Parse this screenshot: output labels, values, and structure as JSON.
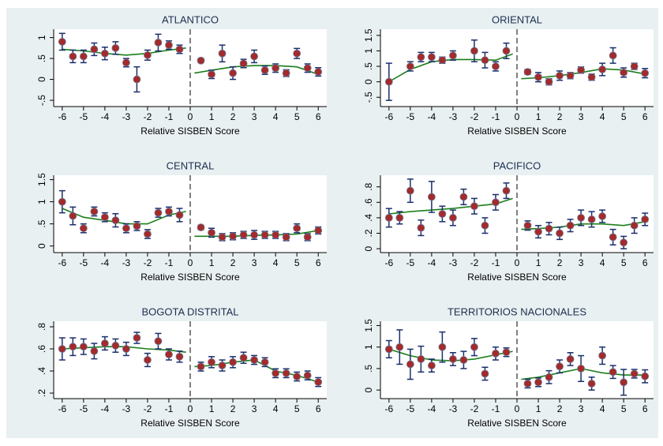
{
  "chart_data": [
    {
      "type": "errorbar",
      "title": "ATLANTICO",
      "x_label": "Relative SISBEN Score",
      "x": [
        -6,
        -5.5,
        -5,
        -4.5,
        -4,
        -3.5,
        -3,
        -2.5,
        -2,
        -1.5,
        -1,
        -0.5,
        0.5,
        1,
        1.5,
        2,
        2.5,
        3,
        3.5,
        4,
        4.5,
        5,
        5.5,
        6
      ],
      "values": [
        0.9,
        0.55,
        0.55,
        0.72,
        0.62,
        0.75,
        0.4,
        0.0,
        0.58,
        0.88,
        0.82,
        0.72,
        0.45,
        0.12,
        0.62,
        0.15,
        0.38,
        0.55,
        0.22,
        0.27,
        0.15,
        0.62,
        0.27,
        0.18
      ],
      "errors": [
        0.2,
        0.15,
        0.15,
        0.15,
        0.15,
        0.15,
        0.1,
        0.3,
        0.12,
        0.2,
        0.1,
        0.1,
        0.05,
        0.1,
        0.2,
        0.15,
        0.1,
        0.15,
        0.1,
        0.1,
        0.08,
        0.12,
        0.1,
        0.1
      ],
      "fit": {
        "x": [
          -6,
          -5,
          -4,
          -3,
          -2,
          -1,
          -0.2,
          0,
          0.2,
          1,
          2,
          3,
          4,
          5,
          6
        ],
        "values": [
          0.72,
          0.68,
          0.62,
          0.58,
          0.62,
          0.7,
          0.75,
          null,
          0.15,
          0.22,
          0.3,
          0.33,
          0.33,
          0.3,
          0.12
        ]
      },
      "cutoff": 0,
      "xlim": [
        -6.4,
        6.4
      ],
      "xticks": [
        -6,
        -5,
        -4,
        -3,
        -2,
        -1,
        0,
        1,
        2,
        3,
        4,
        5,
        6
      ],
      "ylim": [
        -0.65,
        1.2
      ],
      "yticks": [
        {
          "value": -0.5,
          "label": "-.5"
        },
        0,
        {
          "value": 0.5,
          "label": ".5"
        },
        1
      ]
    },
    {
      "type": "errorbar",
      "title": "ORIENTAL",
      "x_label": "Relative SISBEN Score",
      "x": [
        -6,
        -5.5,
        -5,
        -4.5,
        -4,
        -3.5,
        -3,
        -2.5,
        -2,
        -1.5,
        -1,
        -0.5,
        0.5,
        1,
        1.5,
        2,
        2.5,
        3,
        3.5,
        4,
        4.5,
        5,
        5.5,
        6
      ],
      "values": [
        0.0,
        null,
        0.5,
        0.8,
        0.8,
        0.7,
        0.85,
        null,
        1.0,
        0.7,
        0.5,
        1.0,
        0.32,
        0.15,
        0.0,
        0.2,
        0.2,
        0.38,
        0.15,
        0.4,
        0.85,
        0.3,
        0.5,
        0.28
      ],
      "errors": [
        0.6,
        null,
        0.15,
        0.15,
        0.15,
        0.1,
        0.15,
        null,
        0.35,
        0.25,
        0.15,
        0.25,
        0.08,
        0.15,
        0.1,
        0.15,
        0.1,
        0.1,
        0.1,
        0.2,
        0.25,
        0.15,
        0.1,
        0.15
      ],
      "fit": {
        "x": [
          -6,
          -5,
          -4,
          -3,
          -2,
          -1,
          -0.2,
          0,
          0.2,
          1,
          2,
          3,
          4,
          5,
          6
        ],
        "values": [
          0.0,
          0.4,
          0.65,
          0.72,
          0.72,
          0.7,
          0.9,
          null,
          0.1,
          0.13,
          0.2,
          0.3,
          0.42,
          0.38,
          0.25
        ]
      },
      "cutoff": 0,
      "xlim": [
        -6.4,
        6.4
      ],
      "xticks": [
        -6,
        -5,
        -4,
        -3,
        -2,
        -1,
        0,
        1,
        2,
        3,
        4,
        5,
        6
      ],
      "ylim": [
        -0.8,
        1.7
      ],
      "yticks": [
        {
          "value": -0.5,
          "label": "-.5"
        },
        0,
        {
          "value": 0.5,
          "label": ".5"
        },
        1,
        1.5
      ]
    },
    {
      "type": "errorbar",
      "title": "CENTRAL",
      "x_label": "Relative SISBEN Score",
      "x": [
        -6,
        -5.5,
        -5,
        -4.5,
        -4,
        -3.5,
        -3,
        -2.5,
        -2,
        -1.5,
        -1,
        -0.5,
        0.5,
        1,
        1.5,
        2,
        2.5,
        3,
        3.5,
        4,
        4.5,
        5,
        5.5,
        6
      ],
      "values": [
        1.0,
        0.68,
        0.4,
        0.78,
        0.65,
        0.58,
        0.4,
        0.45,
        0.27,
        0.75,
        0.78,
        0.7,
        0.42,
        0.3,
        0.2,
        0.22,
        0.25,
        0.25,
        0.25,
        0.25,
        0.2,
        0.4,
        0.2,
        0.35
      ],
      "errors": [
        0.25,
        0.2,
        0.1,
        0.1,
        0.1,
        0.15,
        0.1,
        0.1,
        0.1,
        0.1,
        0.1,
        0.15,
        0.05,
        0.1,
        0.08,
        0.08,
        0.08,
        0.1,
        0.08,
        0.08,
        0.08,
        0.1,
        0.08,
        0.08
      ],
      "fit": {
        "x": [
          -6,
          -5,
          -4,
          -3,
          -2,
          -1,
          -0.2,
          0,
          0.2,
          1,
          2,
          3,
          4,
          5,
          6
        ],
        "values": [
          0.85,
          0.65,
          0.58,
          0.5,
          0.5,
          0.7,
          0.78,
          null,
          0.22,
          0.22,
          0.22,
          0.24,
          0.25,
          0.27,
          0.35
        ]
      },
      "cutoff": 0,
      "xlim": [
        -6.4,
        6.4
      ],
      "xticks": [
        -6,
        -5,
        -4,
        -3,
        -2,
        -1,
        0,
        1,
        2,
        3,
        4,
        5,
        6
      ],
      "ylim": [
        -0.15,
        1.6
      ],
      "yticks": [
        0,
        {
          "value": 0.5,
          "label": ".5"
        },
        1,
        1.5
      ]
    },
    {
      "type": "errorbar",
      "title": "PACIFICO",
      "x_label": "Relative SISBEN Score",
      "x": [
        -6,
        -5.5,
        -5,
        -4.5,
        -4,
        -3.5,
        -3,
        -2.5,
        -2,
        -1.5,
        -1,
        -0.5,
        0.5,
        1,
        1.5,
        2,
        2.5,
        3,
        3.5,
        4,
        4.5,
        5,
        5.5,
        6
      ],
      "values": [
        0.4,
        0.4,
        0.75,
        0.27,
        0.67,
        0.45,
        0.4,
        0.67,
        0.55,
        0.3,
        0.6,
        0.75,
        0.3,
        0.22,
        0.26,
        0.2,
        0.3,
        0.4,
        0.38,
        0.42,
        0.15,
        0.08,
        0.3,
        0.38
      ],
      "errors": [
        0.12,
        0.08,
        0.15,
        0.1,
        0.2,
        0.1,
        0.1,
        0.1,
        0.1,
        0.1,
        0.1,
        0.1,
        0.06,
        0.08,
        0.08,
        0.08,
        0.08,
        0.1,
        0.1,
        0.08,
        0.1,
        0.08,
        0.1,
        0.08
      ],
      "fit": {
        "x": [
          -6,
          -5,
          -4,
          -3,
          -2,
          -1,
          -0.2,
          0,
          0.2,
          1,
          2,
          3,
          4,
          5,
          6
        ],
        "values": [
          0.45,
          0.48,
          0.5,
          0.52,
          0.55,
          0.58,
          0.65,
          null,
          0.25,
          0.26,
          0.28,
          0.32,
          0.32,
          0.3,
          0.35
        ]
      },
      "cutoff": 0,
      "xlim": [
        -6.4,
        6.4
      ],
      "xticks": [
        -6,
        -5,
        -4,
        -3,
        -2,
        -1,
        0,
        1,
        2,
        3,
        4,
        5,
        6
      ],
      "ylim": [
        -0.05,
        0.95
      ],
      "yticks": [
        0,
        {
          "value": 0.2,
          "label": ".2"
        },
        {
          "value": 0.4,
          "label": ".4"
        },
        {
          "value": 0.6,
          "label": ".6"
        },
        {
          "value": 0.8,
          "label": ".8"
        }
      ]
    },
    {
      "type": "errorbar",
      "title": "BOGOTA DISTRITAL",
      "x_label": "Relative SISBEN Score",
      "x": [
        -6,
        -5.5,
        -5,
        -4.5,
        -4,
        -3.5,
        -3,
        -2.5,
        -2,
        -1.5,
        -1,
        -0.5,
        0.5,
        1,
        1.5,
        2,
        2.5,
        3,
        3.5,
        4,
        4.5,
        5,
        5.5,
        6
      ],
      "values": [
        0.6,
        0.62,
        0.62,
        0.58,
        0.65,
        0.63,
        0.6,
        0.7,
        0.5,
        0.67,
        0.55,
        0.53,
        0.44,
        0.48,
        0.45,
        0.48,
        0.52,
        0.5,
        0.48,
        0.38,
        0.38,
        0.35,
        0.36,
        0.3
      ],
      "errors": [
        0.1,
        0.08,
        0.07,
        0.07,
        0.06,
        0.06,
        0.06,
        0.05,
        0.06,
        0.07,
        0.05,
        0.05,
        0.04,
        0.05,
        0.05,
        0.05,
        0.05,
        0.04,
        0.04,
        0.04,
        0.04,
        0.04,
        0.04,
        0.04
      ],
      "fit": {
        "x": [
          -6,
          -5,
          -4,
          -3,
          -2,
          -1,
          -0.2,
          0,
          0.2,
          1,
          2,
          3,
          4,
          5,
          6
        ],
        "values": [
          0.6,
          0.61,
          0.62,
          0.62,
          0.6,
          0.59,
          0.57,
          null,
          0.44,
          0.45,
          0.48,
          0.5,
          0.4,
          0.36,
          0.3
        ]
      },
      "cutoff": 0,
      "xlim": [
        -6.4,
        6.4
      ],
      "xticks": [
        -6,
        -5,
        -4,
        -3,
        -2,
        -1,
        0,
        1,
        2,
        3,
        4,
        5,
        6
      ],
      "ylim": [
        0.15,
        0.85
      ],
      "yticks": [
        {
          "value": 0.2,
          "label": ".2"
        },
        {
          "value": 0.4,
          "label": ".4"
        },
        {
          "value": 0.6,
          "label": ".6"
        },
        {
          "value": 0.8,
          "label": ".8"
        }
      ]
    },
    {
      "type": "errorbar",
      "title": "TERRITORIOS NACIONALES",
      "x_label": "Relative SISBEN Score",
      "x": [
        -6,
        -5.5,
        -5,
        -4.5,
        -4,
        -3.5,
        -3,
        -2.5,
        -2,
        -1.5,
        -1,
        -0.5,
        0.5,
        1,
        1.5,
        2,
        2.5,
        3,
        3.5,
        4,
        4.5,
        5,
        5.5,
        6
      ],
      "values": [
        0.95,
        1.0,
        0.6,
        0.72,
        0.57,
        1.0,
        0.72,
        0.7,
        1.0,
        0.38,
        0.85,
        0.88,
        0.15,
        0.18,
        0.3,
        0.55,
        0.72,
        0.5,
        0.15,
        0.8,
        0.42,
        0.18,
        0.38,
        0.32
      ],
      "errors": [
        0.2,
        0.4,
        0.35,
        0.3,
        0.15,
        0.35,
        0.15,
        0.2,
        0.2,
        0.15,
        0.15,
        0.1,
        0.1,
        0.1,
        0.15,
        0.15,
        0.15,
        0.3,
        0.15,
        0.2,
        0.15,
        0.3,
        0.1,
        0.15
      ],
      "fit": {
        "x": [
          -6,
          -5,
          -4,
          -3,
          -2,
          -1,
          -0.2,
          0,
          0.2,
          1,
          2,
          3,
          4,
          5,
          6
        ],
        "values": [
          0.95,
          0.8,
          0.7,
          0.68,
          0.72,
          0.82,
          0.9,
          null,
          0.25,
          0.3,
          0.4,
          0.5,
          0.4,
          0.35,
          0.35
        ]
      },
      "cutoff": 0,
      "xlim": [
        -6.4,
        6.4
      ],
      "xticks": [
        -6,
        -5,
        -4,
        -3,
        -2,
        -1,
        0,
        1,
        2,
        3,
        4,
        5,
        6
      ],
      "ylim": [
        -0.2,
        1.6
      ],
      "yticks": [
        0,
        {
          "value": 0.5,
          "label": ".5"
        },
        1,
        1.5
      ]
    }
  ]
}
